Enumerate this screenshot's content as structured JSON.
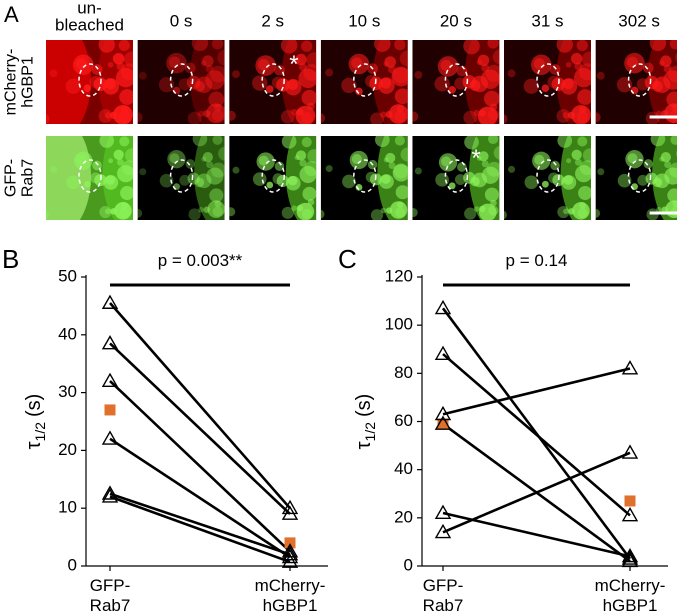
{
  "panel_a": {
    "letter": "A",
    "columns": [
      "un-\nbleached",
      "0 s",
      "2 s",
      "10 s",
      "20 s",
      "31 s",
      "302 s"
    ],
    "rows": [
      "mCherry-\nhGBP1",
      "GFP-\nRab7"
    ],
    "asterisks": [
      "*",
      "*"
    ]
  },
  "chart_data": [
    {
      "type": "paired",
      "panel": "B",
      "annotation": "p = 0.003**",
      "y_label": {
        "symbol": "τ",
        "subscript": "1/2",
        "unit": "(s)"
      },
      "categories": [
        "GFP-\nRab7",
        "mCherry-\nhGBP1"
      ],
      "ylim": [
        0,
        50
      ],
      "yticks": [
        0,
        10,
        20,
        30,
        40,
        50
      ],
      "series": [
        {
          "color": "#000000",
          "values": [
            45.5,
            10
          ]
        },
        {
          "color": "#000000",
          "values": [
            38.5,
            9
          ]
        },
        {
          "color": "#000000",
          "values": [
            32,
            2.5
          ]
        },
        {
          "color": "#000000",
          "values": [
            22,
            1.5
          ]
        },
        {
          "color": "#000000",
          "values": [
            12.5,
            2
          ]
        },
        {
          "color": "#000000",
          "values": [
            12,
            0.7
          ]
        }
      ],
      "mean": {
        "color": "#e0712c",
        "values": [
          27,
          4
        ]
      }
    },
    {
      "type": "paired",
      "panel": "C",
      "annotation": "p = 0.14",
      "y_label": {
        "symbol": "τ",
        "subscript": "1/2",
        "unit": "(s)"
      },
      "categories": [
        "GFP-\nRab7",
        "mCherry-\nhGBP1"
      ],
      "ylim": [
        0,
        120
      ],
      "yticks": [
        0,
        20,
        40,
        60,
        80,
        100,
        120
      ],
      "series": [
        {
          "color": "#000000",
          "values": [
            107,
            3
          ]
        },
        {
          "color": "#000000",
          "values": [
            88,
            21
          ]
        },
        {
          "color": "#000000",
          "values": [
            63,
            82
          ]
        },
        {
          "color": "#000000",
          "values": [
            59,
            2
          ]
        },
        {
          "color": "#000000",
          "values": [
            22,
            4
          ]
        },
        {
          "color": "#000000",
          "values": [
            14,
            47
          ]
        }
      ],
      "mean": {
        "color": "#e0712c",
        "values": [
          59,
          27
        ]
      }
    }
  ]
}
